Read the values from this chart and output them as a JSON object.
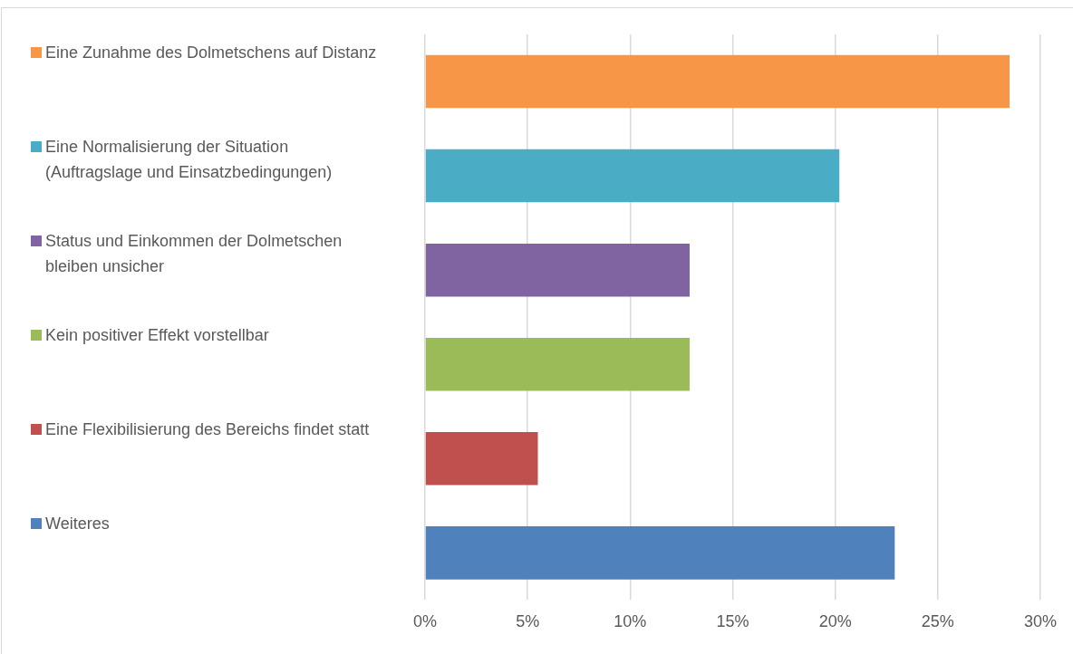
{
  "chart_data": {
    "type": "bar",
    "orientation": "horizontal",
    "categories": [
      null,
      null,
      null,
      null,
      null,
      null
    ],
    "series": [
      {
        "name": "Eine Zunahme des Dolmetschens auf Distanz",
        "color": "#f79646",
        "values": [
          28.5,
          null,
          null,
          null,
          null,
          null
        ]
      },
      {
        "name": "Eine Normalisierung der Situation (Auftragslage und Einsatzbedingungen)",
        "color": "#4bacc6",
        "values": [
          null,
          20.2,
          null,
          null,
          null,
          null
        ]
      },
      {
        "name": "Status und Einkommen der Dolmetschen bleiben unsicher",
        "color": "#8064a2",
        "values": [
          null,
          null,
          12.9,
          null,
          null,
          null
        ]
      },
      {
        "name": "Kein positiver Effekt vorstellbar",
        "color": "#9bbb59",
        "values": [
          null,
          null,
          null,
          12.9,
          null,
          null
        ]
      },
      {
        "name": "Eine Flexibilisierung des Bereichs findet statt",
        "color": "#c0504d",
        "values": [
          null,
          null,
          null,
          null,
          5.5,
          null
        ]
      },
      {
        "name": "Weiteres",
        "color": "#4f81bd",
        "values": [
          null,
          null,
          null,
          null,
          null,
          22.9
        ]
      }
    ],
    "xlim": [
      0,
      30
    ],
    "xticks": [
      {
        "value": 0,
        "label": "0%"
      },
      {
        "value": 5,
        "label": "5%"
      },
      {
        "value": 10,
        "label": "10%"
      },
      {
        "value": 15,
        "label": "15%"
      },
      {
        "value": 20,
        "label": "20%"
      },
      {
        "value": 25,
        "label": "25%"
      },
      {
        "value": 30,
        "label": "30%"
      }
    ],
    "grid": "x",
    "legend": "left",
    "tick_labels": "x"
  }
}
